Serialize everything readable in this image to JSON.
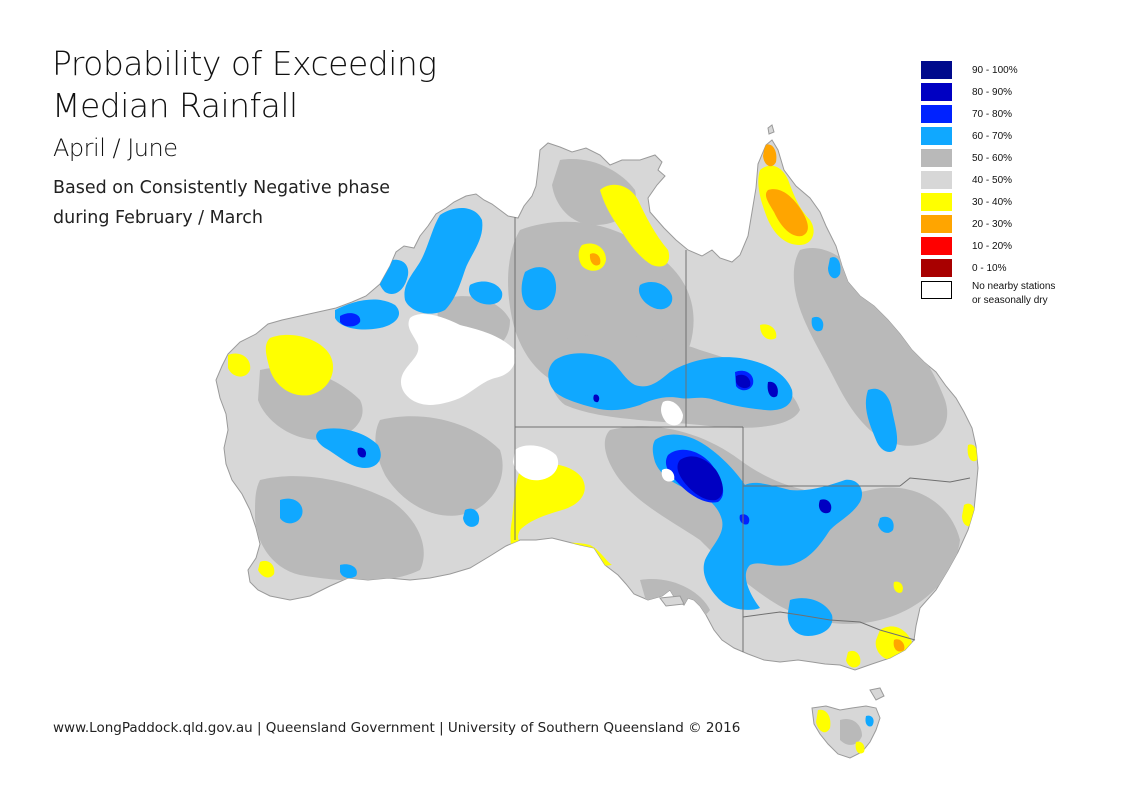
{
  "title": {
    "line1": "Probability of Exceeding",
    "line2": "Median Rainfall",
    "period": "April / June",
    "description_line1": "Based on Consistently Negative phase",
    "description_line2": "during February / March"
  },
  "legend": {
    "items": [
      {
        "label": "90 - 100%",
        "color": "#000a8c"
      },
      {
        "label": "80 - 90%",
        "color": "#0000c2"
      },
      {
        "label": "70 - 80%",
        "color": "#0022ff"
      },
      {
        "label": "60 - 70%",
        "color": "#10a8ff"
      },
      {
        "label": "50 - 60%",
        "color": "#b9b9b9"
      },
      {
        "label": "40 - 50%",
        "color": "#d7d7d7"
      },
      {
        "label": "30 - 40%",
        "color": "#ffff00"
      },
      {
        "label": "20 - 30%",
        "color": "#ffa500"
      },
      {
        "label": "10 - 20%",
        "color": "#ff0000"
      },
      {
        "label": "0 - 10%",
        "color": "#a80000"
      },
      {
        "label": "No nearby stations",
        "label2": "or seasonally dry",
        "color": "#ffffff"
      }
    ]
  },
  "footer": "www.LongPaddock.qld.gov.au | Queensland Government | University of Southern Queensland © 2016",
  "colors": {
    "land_base": "#d7d7d7",
    "band_50_60": "#b9b9b9",
    "band_60_70": "#10a8ff",
    "band_70_80": "#0022ff",
    "band_80_90": "#0000c2",
    "band_30_40": "#ffff00",
    "band_20_30": "#ffa500",
    "no_data": "#ffffff",
    "state_border": "#707070",
    "coast": "#9a9a9a"
  }
}
